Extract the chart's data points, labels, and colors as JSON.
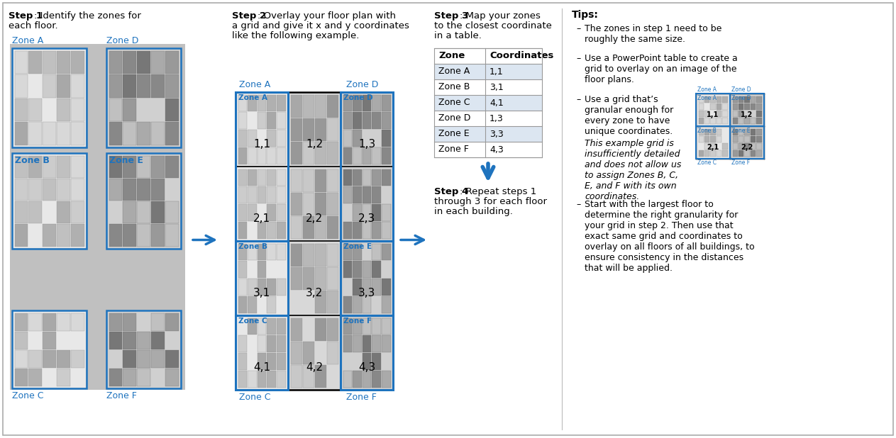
{
  "blue": "#1e73be",
  "arrow_blue": "#1e73be",
  "light_blue_fill": "#dce6f1",
  "mid_blue_fill": "#b8cce4",
  "table_alt": "#dce6f1",
  "step1_title": "Step 1",
  "step1_rest": ": Identify the zones for\neach floor.",
  "step2_title": "Step 2",
  "step2_rest": ": Overlay your floor plan with\na grid and give it x and y coordinates\nlike the following example.",
  "step3_title": "Step 3",
  "step3_rest": ": Map your zones\nto the closest coordinate\nin a table.",
  "step4_title": "Step 4",
  "step4_rest": ": Repeat steps 1\nthrough 3 for each floor\nin each building.",
  "tips_title": "Tips:",
  "tip1": "The zones in step 1 need to be\nroughly the same size.",
  "tip2": "Use a PowerPoint table to create a\ngrid to overlay on an image of the\nfloor plans.",
  "tip3a": "Use a grid that’s\ngranular enough for\nevery zone to have\nunique coordinates.",
  "tip3b_italic": "This example grid is\ninsufficiently detailed\nand does not allow us\nto assign Zones B, C,\nE, and F with its own\ncoordinates.",
  "tip4": "Start with the largest floor to\ndetermine the right granularity for\nyour grid in step 2. Then use that\nexact same grid and coordinates to\noverlay on all floors of all buildings, to\nensure consistency in the distances\nthat will be applied.",
  "table_zones": [
    "Zone A",
    "Zone B",
    "Zone C",
    "Zone D",
    "Zone E",
    "Zone F"
  ],
  "table_coords": [
    "1,1",
    "3,1",
    "4,1",
    "1,3",
    "3,3",
    "4,3"
  ],
  "grid_labels": [
    [
      "1,1",
      "1,2",
      "1,3"
    ],
    [
      "2,1",
      "2,2",
      "2,3"
    ],
    [
      "3,1",
      "3,2",
      "3,3"
    ],
    [
      "4,1",
      "4,2",
      "4,3"
    ]
  ]
}
